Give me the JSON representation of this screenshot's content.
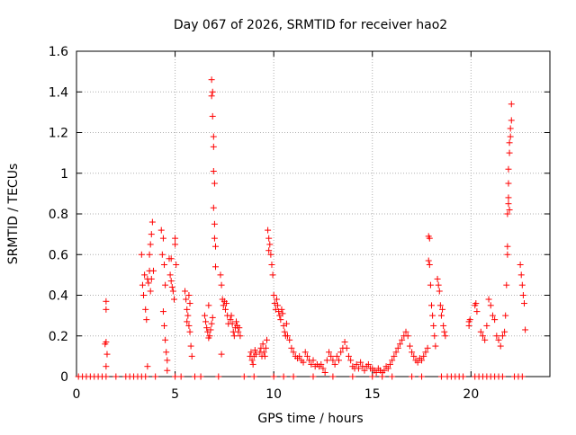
{
  "chart_data": {
    "type": "scatter",
    "title": "Day 067 of 2026, SRMTID for receiver hao2",
    "xlabel": "GPS time / hours",
    "ylabel": "SRMTID / TECUs",
    "xlim": [
      0,
      24
    ],
    "ylim": [
      0,
      1.6
    ],
    "xticks": [
      0,
      5,
      10,
      15,
      20
    ],
    "yticks": [
      0,
      0.2,
      0.4,
      0.6,
      0.8,
      1,
      1.2,
      1.4,
      1.6
    ],
    "grid": true,
    "marker": "+",
    "series": [
      {
        "name": "SRMTID",
        "color": "#ff0000",
        "points": [
          [
            0.1,
            0
          ],
          [
            0.3,
            0
          ],
          [
            0.5,
            0
          ],
          [
            0.7,
            0
          ],
          [
            0.9,
            0
          ],
          [
            1.1,
            0
          ],
          [
            1.3,
            0
          ],
          [
            1.5,
            0
          ],
          [
            1.45,
            0.16
          ],
          [
            1.5,
            0.17
          ],
          [
            1.55,
            0.11
          ],
          [
            1.5,
            0.05
          ],
          [
            1.5,
            0.37
          ],
          [
            1.5,
            0.33
          ],
          [
            2.5,
            0
          ],
          [
            2.7,
            0
          ],
          [
            2.9,
            0
          ],
          [
            3.1,
            0
          ],
          [
            3.3,
            0
          ],
          [
            3.5,
            0
          ],
          [
            3.3,
            0.6
          ],
          [
            3.35,
            0.45
          ],
          [
            3.4,
            0.4
          ],
          [
            3.45,
            0.5
          ],
          [
            3.5,
            0.33
          ],
          [
            3.55,
            0.28
          ],
          [
            3.6,
            0.48
          ],
          [
            3.65,
            0.46
          ],
          [
            3.7,
            0.6
          ],
          [
            3.75,
            0.65
          ],
          [
            3.8,
            0.7
          ],
          [
            3.85,
            0.76
          ],
          [
            3.7,
            0.52
          ],
          [
            3.75,
            0.42
          ],
          [
            3.8,
            0.48
          ],
          [
            3.6,
            0.05
          ],
          [
            3.9,
            0.52
          ],
          [
            4.3,
            0.72
          ],
          [
            4.35,
            0.6
          ],
          [
            4.4,
            0.68
          ],
          [
            4.45,
            0.55
          ],
          [
            4.5,
            0.45
          ],
          [
            4.4,
            0.32
          ],
          [
            4.45,
            0.25
          ],
          [
            4.5,
            0.18
          ],
          [
            4.55,
            0.12
          ],
          [
            4.6,
            0.08
          ],
          [
            4.6,
            0.03
          ],
          [
            4.7,
            0.58
          ],
          [
            4.75,
            0.5
          ],
          [
            4.8,
            0.47
          ],
          [
            4.85,
            0.44
          ],
          [
            4.9,
            0.42
          ],
          [
            4.95,
            0.38
          ],
          [
            5.0,
            0.65
          ],
          [
            5.0,
            0.68
          ],
          [
            5.05,
            0.55
          ],
          [
            4.8,
            0.58
          ],
          [
            5.5,
            0.42
          ],
          [
            5.55,
            0.38
          ],
          [
            5.6,
            0.33
          ],
          [
            5.65,
            0.3
          ],
          [
            5.7,
            0.25
          ],
          [
            5.75,
            0.22
          ],
          [
            5.8,
            0.15
          ],
          [
            5.85,
            0.1
          ],
          [
            5.6,
            0.27
          ],
          [
            5.7,
            0.4
          ],
          [
            5.75,
            0.36
          ],
          [
            6.5,
            0.3
          ],
          [
            6.55,
            0.27
          ],
          [
            6.6,
            0.24
          ],
          [
            6.65,
            0.22
          ],
          [
            6.7,
            0.19
          ],
          [
            6.75,
            0.2
          ],
          [
            6.8,
            0.23
          ],
          [
            6.85,
            0.26
          ],
          [
            6.9,
            0.29
          ],
          [
            6.7,
            0.35
          ],
          [
            6.85,
            1.46
          ],
          [
            6.9,
            1.4
          ],
          [
            6.85,
            1.38
          ],
          [
            6.9,
            1.28
          ],
          [
            6.95,
            1.18
          ],
          [
            6.95,
            1.13
          ],
          [
            6.95,
            1.01
          ],
          [
            7.0,
            0.95
          ],
          [
            6.95,
            0.83
          ],
          [
            7.0,
            0.75
          ],
          [
            7.0,
            0.68
          ],
          [
            7.05,
            0.64
          ],
          [
            7.05,
            0.54
          ],
          [
            7.3,
            0.5
          ],
          [
            7.35,
            0.45
          ],
          [
            7.4,
            0.38
          ],
          [
            7.45,
            0.35
          ],
          [
            7.5,
            0.37
          ],
          [
            7.55,
            0.33
          ],
          [
            7.6,
            0.36
          ],
          [
            7.65,
            0.3
          ],
          [
            7.7,
            0.26
          ],
          [
            7.35,
            0.11
          ],
          [
            7.8,
            0.28
          ],
          [
            7.85,
            0.3
          ],
          [
            7.9,
            0.26
          ],
          [
            7.95,
            0.22
          ],
          [
            8.0,
            0.2
          ],
          [
            8.05,
            0.24
          ],
          [
            8.1,
            0.27
          ],
          [
            8.15,
            0.25
          ],
          [
            8.2,
            0.22
          ],
          [
            8.25,
            0.24
          ],
          [
            8.3,
            0.2
          ],
          [
            8.8,
            0.1
          ],
          [
            8.85,
            0.12
          ],
          [
            8.9,
            0.08
          ],
          [
            8.95,
            0.06
          ],
          [
            9.0,
            0.1
          ],
          [
            9.05,
            0.13
          ],
          [
            9.1,
            0.11
          ],
          [
            9.3,
            0.12
          ],
          [
            9.35,
            0.14
          ],
          [
            9.4,
            0.1
          ],
          [
            9.45,
            0.16
          ],
          [
            9.5,
            0.12
          ],
          [
            9.55,
            0.1
          ],
          [
            9.6,
            0.14
          ],
          [
            9.65,
            0.18
          ],
          [
            9.7,
            0.72
          ],
          [
            9.75,
            0.68
          ],
          [
            9.8,
            0.65
          ],
          [
            9.85,
            0.6
          ],
          [
            9.9,
            0.55
          ],
          [
            9.95,
            0.5
          ],
          [
            9.75,
            0.62
          ],
          [
            10.0,
            0.4
          ],
          [
            10.05,
            0.36
          ],
          [
            10.1,
            0.33
          ],
          [
            10.15,
            0.38
          ],
          [
            10.2,
            0.35
          ],
          [
            10.25,
            0.32
          ],
          [
            10.3,
            0.3
          ],
          [
            10.35,
            0.28
          ],
          [
            10.4,
            0.33
          ],
          [
            10.45,
            0.31
          ],
          [
            10.5,
            0.25
          ],
          [
            10.55,
            0.22
          ],
          [
            10.6,
            0.2
          ],
          [
            10.65,
            0.26
          ],
          [
            10.7,
            0.2
          ],
          [
            10.8,
            0.18
          ],
          [
            10.9,
            0.14
          ],
          [
            11.0,
            0.12
          ],
          [
            11.1,
            0.1
          ],
          [
            11.2,
            0.09
          ],
          [
            11.3,
            0.1
          ],
          [
            11.4,
            0.08
          ],
          [
            11.5,
            0.07
          ],
          [
            11.6,
            0.12
          ],
          [
            11.7,
            0.1
          ],
          [
            11.8,
            0.08
          ],
          [
            11.9,
            0.06
          ],
          [
            12.0,
            0.08
          ],
          [
            12.1,
            0.05
          ],
          [
            12.2,
            0.06
          ],
          [
            12.3,
            0.05
          ],
          [
            12.4,
            0.06
          ],
          [
            12.5,
            0.04
          ],
          [
            12.6,
            0.02
          ],
          [
            12.7,
            0.08
          ],
          [
            12.8,
            0.12
          ],
          [
            12.9,
            0.1
          ],
          [
            13.0,
            0.08
          ],
          [
            13.1,
            0.06
          ],
          [
            13.2,
            0.1
          ],
          [
            13.3,
            0.08
          ],
          [
            13.4,
            0.12
          ],
          [
            13.5,
            0.14
          ],
          [
            13.6,
            0.17
          ],
          [
            13.7,
            0.14
          ],
          [
            13.8,
            0.1
          ],
          [
            13.9,
            0.08
          ],
          [
            14.0,
            0.05
          ],
          [
            14.1,
            0.04
          ],
          [
            14.2,
            0.06
          ],
          [
            14.3,
            0.04
          ],
          [
            14.4,
            0.07
          ],
          [
            14.5,
            0.05
          ],
          [
            14.6,
            0.03
          ],
          [
            14.7,
            0.05
          ],
          [
            14.8,
            0.06
          ],
          [
            14.9,
            0.04
          ],
          [
            15.0,
            0.04
          ],
          [
            15.1,
            0.03
          ],
          [
            15.2,
            0.02
          ],
          [
            15.3,
            0.04
          ],
          [
            15.4,
            0.03
          ],
          [
            15.5,
            0.02
          ],
          [
            15.6,
            0.03
          ],
          [
            15.7,
            0.05
          ],
          [
            15.8,
            0.04
          ],
          [
            15.9,
            0.06
          ],
          [
            16.0,
            0.08
          ],
          [
            16.1,
            0.1
          ],
          [
            16.2,
            0.12
          ],
          [
            16.3,
            0.14
          ],
          [
            16.4,
            0.16
          ],
          [
            16.5,
            0.18
          ],
          [
            16.6,
            0.2
          ],
          [
            16.7,
            0.22
          ],
          [
            16.8,
            0.2
          ],
          [
            16.9,
            0.15
          ],
          [
            17.0,
            0.12
          ],
          [
            17.1,
            0.1
          ],
          [
            17.2,
            0.08
          ],
          [
            17.3,
            0.07
          ],
          [
            17.4,
            0.09
          ],
          [
            17.5,
            0.08
          ],
          [
            17.6,
            0.1
          ],
          [
            17.7,
            0.12
          ],
          [
            17.8,
            0.14
          ],
          [
            17.85,
            0.69
          ],
          [
            17.9,
            0.68
          ],
          [
            17.85,
            0.57
          ],
          [
            17.9,
            0.55
          ],
          [
            17.95,
            0.45
          ],
          [
            18.0,
            0.35
          ],
          [
            18.05,
            0.3
          ],
          [
            18.1,
            0.25
          ],
          [
            18.15,
            0.2
          ],
          [
            18.2,
            0.15
          ],
          [
            18.3,
            0.48
          ],
          [
            18.35,
            0.45
          ],
          [
            18.4,
            0.42
          ],
          [
            18.45,
            0.35
          ],
          [
            18.5,
            0.3
          ],
          [
            18.55,
            0.33
          ],
          [
            18.6,
            0.25
          ],
          [
            18.65,
            0.22
          ],
          [
            18.7,
            0.2
          ],
          [
            18.8,
            0
          ],
          [
            19.0,
            0
          ],
          [
            19.2,
            0
          ],
          [
            19.4,
            0
          ],
          [
            19.6,
            0
          ],
          [
            19.9,
            0.27
          ],
          [
            19.95,
            0.28
          ],
          [
            19.9,
            0.25
          ],
          [
            20.2,
            0.35
          ],
          [
            20.25,
            0.36
          ],
          [
            20.3,
            0.32
          ],
          [
            20.5,
            0.22
          ],
          [
            20.6,
            0.2
          ],
          [
            20.7,
            0.18
          ],
          [
            20.8,
            0.25
          ],
          [
            20.9,
            0.38
          ],
          [
            21.0,
            0.35
          ],
          [
            21.1,
            0.3
          ],
          [
            21.2,
            0.28
          ],
          [
            21.3,
            0.2
          ],
          [
            21.4,
            0.18
          ],
          [
            21.5,
            0.15
          ],
          [
            21.6,
            0.2
          ],
          [
            21.7,
            0.22
          ],
          [
            21.75,
            0.3
          ],
          [
            21.8,
            0.45
          ],
          [
            21.85,
            0.6
          ],
          [
            21.85,
            0.64
          ],
          [
            21.85,
            0.8
          ],
          [
            21.9,
            0.88
          ],
          [
            21.9,
            0.95
          ],
          [
            21.9,
            1.02
          ],
          [
            21.95,
            1.1
          ],
          [
            21.95,
            1.15
          ],
          [
            22.0,
            1.18
          ],
          [
            22.0,
            1.22
          ],
          [
            22.05,
            1.26
          ],
          [
            22.05,
            1.34
          ],
          [
            21.9,
            0.85
          ],
          [
            21.95,
            0.82
          ],
          [
            22.5,
            0.55
          ],
          [
            22.55,
            0.5
          ],
          [
            22.6,
            0.45
          ],
          [
            22.65,
            0.4
          ],
          [
            22.7,
            0.36
          ],
          [
            22.75,
            0.23
          ],
          [
            20.2,
            0
          ],
          [
            20.4,
            0
          ],
          [
            20.6,
            0
          ],
          [
            20.8,
            0
          ],
          [
            21.0,
            0
          ],
          [
            21.2,
            0
          ],
          [
            21.4,
            0
          ],
          [
            21.6,
            0
          ],
          [
            22.2,
            0
          ],
          [
            22.4,
            0
          ],
          [
            22.6,
            0
          ],
          [
            2.0,
            0
          ],
          [
            4.0,
            0
          ],
          [
            5.0,
            0
          ],
          [
            5.3,
            0
          ],
          [
            6.0,
            0
          ],
          [
            6.3,
            0
          ],
          [
            7.2,
            0
          ],
          [
            8.5,
            0
          ],
          [
            9.0,
            0
          ],
          [
            10.0,
            0
          ],
          [
            10.5,
            0
          ],
          [
            11.0,
            0
          ],
          [
            12.0,
            0
          ],
          [
            13.0,
            0
          ],
          [
            14.0,
            0
          ],
          [
            15.0,
            0
          ],
          [
            15.5,
            0
          ],
          [
            16.0,
            0
          ],
          [
            17.0,
            0
          ],
          [
            17.5,
            0
          ],
          [
            18.5,
            0
          ]
        ]
      }
    ]
  }
}
